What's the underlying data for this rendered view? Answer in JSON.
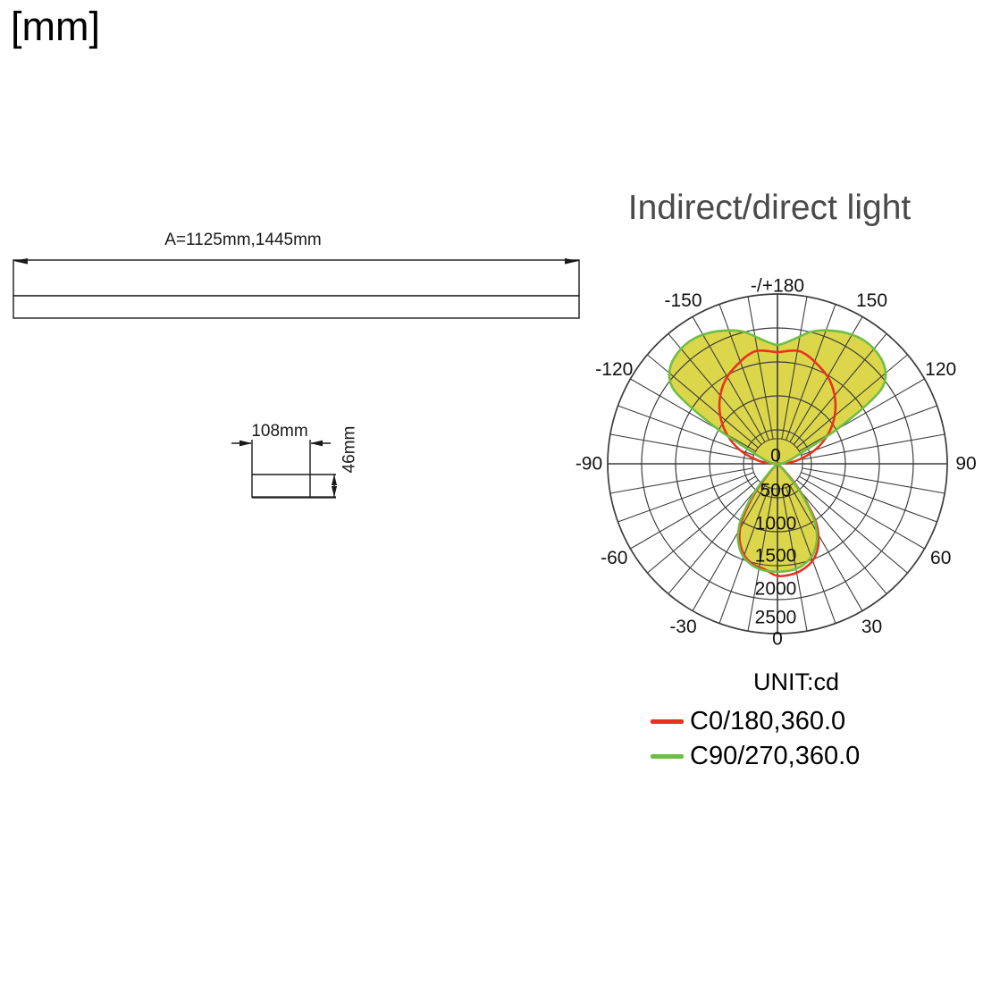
{
  "page": {
    "unit_label": "[mm]"
  },
  "drawing": {
    "length_label": "A=1125mm,1445mm",
    "width_label": "108mm",
    "height_label": "46mm"
  },
  "chart": {
    "title": "Indirect/direct light",
    "unit_label": "UNIT:cd",
    "legend": [
      {
        "label": "C0/180,360.0",
        "color": "#e8321f"
      },
      {
        "label": "C90/270,360.0",
        "color": "#6fbe44"
      }
    ]
  },
  "chart_data": {
    "type": "polar",
    "title": "Indirect/direct light",
    "unit": "cd",
    "rmax": 2500,
    "grid_step": 500,
    "inner_circle_cd": 370,
    "grid_color": "#3d3d3d",
    "fill_color": "#dcd64b",
    "radial_ticks": [
      {
        "label": "0",
        "dy": -9
      },
      {
        "label": "500",
        "dy": 30
      },
      {
        "label": "1000",
        "dy": 67
      },
      {
        "label": "1500",
        "dy": 103
      },
      {
        "label": "2000",
        "dy": 140
      },
      {
        "label": "2500",
        "dy": 172
      }
    ],
    "angle_labels": [
      {
        "angle": 180,
        "label": "-/+180"
      },
      {
        "angle": 150,
        "label": "150"
      },
      {
        "angle": 120,
        "label": "120"
      },
      {
        "angle": 90,
        "label": "90"
      },
      {
        "angle": 60,
        "label": "60"
      },
      {
        "angle": 30,
        "label": "30"
      },
      {
        "angle": 0,
        "label": "0"
      },
      {
        "angle": -30,
        "label": "-30"
      },
      {
        "angle": -60,
        "label": "-60"
      },
      {
        "angle": -90,
        "label": "-90"
      },
      {
        "angle": -120,
        "label": "-120"
      },
      {
        "angle": -150,
        "label": "-150"
      }
    ],
    "series": [
      {
        "name": "C0/180,360.0",
        "color": "#e8321f",
        "lobes": {
          "upper": [
            [
              94,
              120
            ],
            [
              100,
              300
            ],
            [
              110,
              585
            ],
            [
              120,
              855
            ],
            [
              130,
              1100
            ],
            [
              140,
              1310
            ],
            [
              150,
              1480
            ],
            [
              160,
              1600
            ],
            [
              166,
              1670
            ],
            [
              170,
              1690
            ],
            [
              174,
              1672
            ],
            [
              178,
              1650
            ],
            [
              180,
              1645
            ],
            [
              -178,
              1650
            ],
            [
              -174,
              1672
            ],
            [
              -170,
              1690
            ],
            [
              -166,
              1670
            ],
            [
              -160,
              1600
            ],
            [
              -150,
              1480
            ],
            [
              -140,
              1310
            ],
            [
              -130,
              1100
            ],
            [
              -120,
              855
            ],
            [
              -110,
              585
            ],
            [
              -100,
              300
            ],
            [
              -94,
              120
            ]
          ],
          "lower": [
            [
              -46,
              40
            ],
            [
              -43,
              150
            ],
            [
              -40,
              320
            ],
            [
              -38,
              520
            ],
            [
              -35,
              750
            ],
            [
              -32,
              990
            ],
            [
              -28,
              1190
            ],
            [
              -24,
              1330
            ],
            [
              -19,
              1450
            ],
            [
              -13,
              1530
            ],
            [
              -7,
              1565
            ],
            [
              0,
              1650
            ],
            [
              8,
              1640
            ],
            [
              14,
              1595
            ],
            [
              20,
              1515
            ],
            [
              25,
              1395
            ],
            [
              29,
              1250
            ],
            [
              33,
              1050
            ],
            [
              36,
              815
            ],
            [
              39,
              580
            ],
            [
              42,
              355
            ],
            [
              45,
              170
            ],
            [
              49,
              55
            ]
          ]
        }
      },
      {
        "name": "C90/270,360.0",
        "color": "#6fbe44",
        "fill": "#dcd64b",
        "lobes": {
          "upper": [
            [
              92,
              40
            ],
            [
              96,
              80
            ],
            [
              102,
              130
            ],
            [
              108,
              210
            ],
            [
              114,
              370
            ],
            [
              118,
              660
            ],
            [
              120,
              990
            ],
            [
              122,
              1320
            ],
            [
              124,
              1660
            ],
            [
              126,
              1910
            ],
            [
              130,
              2080
            ],
            [
              136,
              2180
            ],
            [
              144,
              2220
            ],
            [
              152,
              2180
            ],
            [
              160,
              2090
            ],
            [
              166,
              2000
            ],
            [
              172,
              1860
            ],
            [
              176,
              1790
            ],
            [
              180,
              1750
            ],
            [
              -176,
              1790
            ],
            [
              -172,
              1860
            ],
            [
              -166,
              2000
            ],
            [
              -160,
              2090
            ],
            [
              -152,
              2180
            ],
            [
              -144,
              2220
            ],
            [
              -136,
              2180
            ],
            [
              -130,
              2080
            ],
            [
              -126,
              1910
            ],
            [
              -124,
              1660
            ],
            [
              -122,
              1320
            ],
            [
              -120,
              990
            ],
            [
              -118,
              660
            ],
            [
              -114,
              370
            ],
            [
              -108,
              210
            ],
            [
              -102,
              130
            ],
            [
              -96,
              80
            ],
            [
              -92,
              40
            ]
          ],
          "lower": [
            [
              -48,
              50
            ],
            [
              -44,
              160
            ],
            [
              -41,
              330
            ],
            [
              -39,
              530
            ],
            [
              -36,
              760
            ],
            [
              -33,
              1000
            ],
            [
              -29,
              1200
            ],
            [
              -25,
              1340
            ],
            [
              -20,
              1460
            ],
            [
              -14,
              1540
            ],
            [
              -8,
              1580
            ],
            [
              0,
              1590
            ],
            [
              8,
              1580
            ],
            [
              14,
              1540
            ],
            [
              20,
              1460
            ],
            [
              25,
              1340
            ],
            [
              29,
              1200
            ],
            [
              33,
              1000
            ],
            [
              36,
              760
            ],
            [
              39,
              530
            ],
            [
              41,
              330
            ],
            [
              44,
              160
            ],
            [
              48,
              50
            ]
          ]
        }
      }
    ]
  }
}
